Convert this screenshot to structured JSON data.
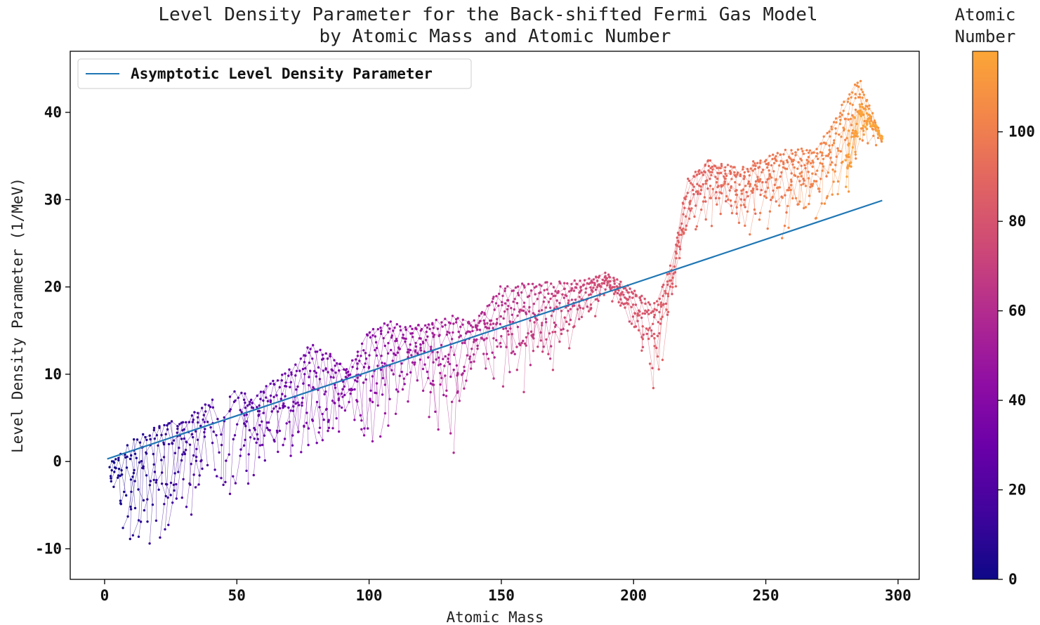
{
  "chart_data": {
    "type": "scatter",
    "title_lines": [
      "Level Density Parameter for the Back-shifted Fermi Gas Model",
      "by Atomic Mass and Atomic Number"
    ],
    "xlabel": "Atomic Mass",
    "ylabel": "Level Density Parameter (1/MeV)",
    "xlim": [
      -13,
      308
    ],
    "ylim": [
      -13.5,
      47
    ],
    "x_ticks": [
      0,
      50,
      100,
      150,
      200,
      250,
      300
    ],
    "y_ticks": [
      -10,
      0,
      10,
      20,
      30,
      40
    ],
    "grid": false,
    "legend": {
      "placement": "top-left",
      "entries": [
        "Asymptotic Level Density Parameter"
      ]
    },
    "colorbar": {
      "title_lines": [
        "Atomic",
        "Number"
      ],
      "range": [
        0,
        118
      ],
      "ticks": [
        0,
        20,
        40,
        60,
        80,
        100
      ],
      "colormap": "plasma"
    },
    "series": [
      {
        "name": "Asymptotic Level Density Parameter",
        "kind": "line",
        "color": "#1f77b4",
        "x": [
          1,
          294
        ],
        "y": [
          0.3,
          29.9
        ]
      }
    ],
    "trend_envelope": {
      "description_points_mass": [
        1,
        10,
        20,
        30,
        40,
        46,
        55,
        65,
        70,
        78,
        85,
        92,
        100,
        108,
        118,
        125,
        132,
        140,
        150,
        160,
        170,
        180,
        190,
        200,
        208,
        215,
        220,
        228,
        240,
        255,
        270,
        285,
        294
      ],
      "upper_y": [
        -0.5,
        2.0,
        4.5,
        4.8,
        7.0,
        8.8,
        7.2,
        9.8,
        10.5,
        13.6,
        12.5,
        10.5,
        15.5,
        15.9,
        15.5,
        16.3,
        16.6,
        16.0,
        20.0,
        20.4,
        20.4,
        20.6,
        21.4,
        19.5,
        18.0,
        23.0,
        32.0,
        34.5,
        33.5,
        35.5,
        36.0,
        44.0,
        37.0
      ],
      "lower_y": [
        -3.0,
        -10.5,
        -10.8,
        -7.0,
        -5.5,
        -6.5,
        -4.5,
        -2.0,
        -1.5,
        -2.5,
        -1.8,
        5.0,
        -2.8,
        3.0,
        8.0,
        2.0,
        -1.5,
        11.0,
        6.8,
        7.0,
        9.0,
        14.0,
        19.0,
        14.0,
        6.3,
        18.0,
        24.0,
        27.0,
        26.0,
        25.0,
        26.5,
        32.0,
        35.0
      ]
    }
  }
}
